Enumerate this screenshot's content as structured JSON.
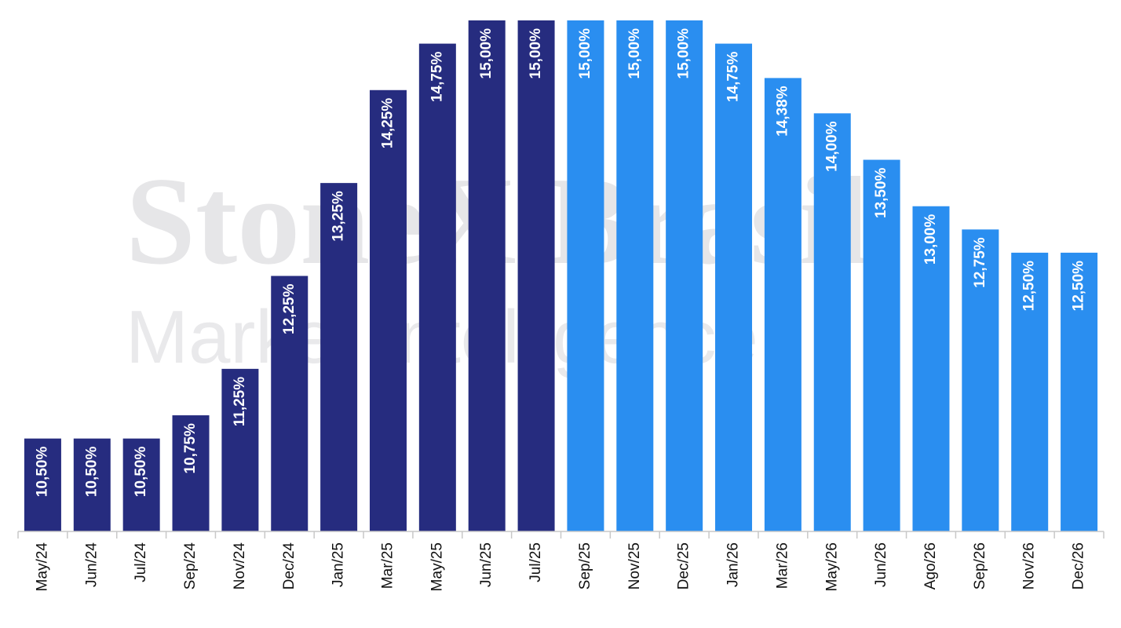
{
  "chart_data": {
    "type": "bar",
    "watermark": {
      "line1": "StoneX Brasil",
      "line2": "Market Intelligence"
    },
    "categories": [
      "May/24",
      "Jun/24",
      "Jul/24",
      "Sep/24",
      "Nov/24",
      "Dec/24",
      "Jan/25",
      "Mar/25",
      "May/25",
      "Jun/25",
      "Jul/25",
      "Sep/25",
      "Nov/25",
      "Dec/25",
      "Jan/26",
      "Mar/26",
      "May/26",
      "Jun/26",
      "Ago/26",
      "Sep/26",
      "Nov/26",
      "Dec/26"
    ],
    "values": [
      10.5,
      10.5,
      10.5,
      10.75,
      11.25,
      12.25,
      13.25,
      14.25,
      14.75,
      15,
      15,
      15,
      15,
      15,
      14.75,
      14.38,
      14,
      13.5,
      13,
      12.75,
      12.5,
      12.5
    ],
    "value_labels": [
      "10,50%",
      "10,50%",
      "10,50%",
      "10,75%",
      "11,25%",
      "12,25%",
      "13,25%",
      "14,25%",
      "14,75%",
      "15,00%",
      "15,00%",
      "15,00%",
      "15,00%",
      "15,00%",
      "14,75%",
      "14,38%",
      "14,00%",
      "13,50%",
      "13,00%",
      "12,75%",
      "12,50%",
      "12,50%"
    ],
    "colors": [
      "#262c7f",
      "#262c7f",
      "#262c7f",
      "#262c7f",
      "#262c7f",
      "#262c7f",
      "#262c7f",
      "#262c7f",
      "#262c7f",
      "#262c7f",
      "#262c7f",
      "#2a8ef0",
      "#2a8ef0",
      "#2a8ef0",
      "#2a8ef0",
      "#2a8ef0",
      "#2a8ef0",
      "#2a8ef0",
      "#2a8ef0",
      "#2a8ef0",
      "#2a8ef0",
      "#2a8ef0"
    ],
    "ylim": [
      9.5,
      15
    ]
  }
}
